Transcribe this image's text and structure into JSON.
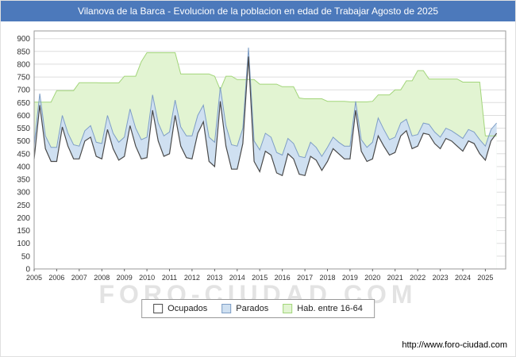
{
  "title": "Vilanova de la Barca - Evolucion de la poblacion en edad de Trabajar Agosto de 2025",
  "watermark": "FORO-CIUDAD.COM",
  "footer": {
    "url": "http://www.foro-ciudad.com"
  },
  "legend": [
    {
      "label": "Ocupados",
      "fill": "#ffffff",
      "stroke": "#4a4a4a"
    },
    {
      "label": "Parados",
      "fill": "#cfe0f1",
      "stroke": "#7e9ec6"
    },
    {
      "label": "Hab. entre 16-64",
      "fill": "#e2f4d2",
      "stroke": "#a2d57a"
    }
  ],
  "colors": {
    "titlebar_bg": "#4c79bb",
    "hab_fill": "#e2f4d2",
    "hab_stroke": "#a2d57a",
    "parados_fill": "#cfe0f1",
    "parados_stroke": "#7e9ec6",
    "ocupados_fill": "#ffffff",
    "ocupados_stroke": "#4a4a4a",
    "grid": "#dddddd",
    "plot_border": "#999999",
    "tick_text": "#333333"
  },
  "chart_data": {
    "type": "area",
    "title": "Vilanova de la Barca - Evolucion de la poblacion en edad de Trabajar Agosto de 2025",
    "xlabel": "",
    "ylabel": "",
    "legend_position": "bottom",
    "grid": true,
    "stacking_note": "Parados is drawn stacked on top of Ocupados; Hab. entre 16-64 is the total working-age population band behind both.",
    "xlim": [
      2005,
      2025.9
    ],
    "ylim": [
      0,
      930
    ],
    "y_tick_max": 900,
    "y_tick_step": 50,
    "x_tick_labels": [
      "2005",
      "2006",
      "2007",
      "2008",
      "2009",
      "2010",
      "2011",
      "2012",
      "2013",
      "2014",
      "2015",
      "2016",
      "2017",
      "2018",
      "2019",
      "2020",
      "2021",
      "2022",
      "2023",
      "2024",
      "2025"
    ],
    "x": [
      2005,
      2005.25,
      2005.5,
      2005.75,
      2006,
      2006.25,
      2006.5,
      2006.75,
      2007,
      2007.25,
      2007.5,
      2007.75,
      2008,
      2008.25,
      2008.5,
      2008.75,
      2009,
      2009.25,
      2009.5,
      2009.75,
      2010,
      2010.25,
      2010.5,
      2010.75,
      2011,
      2011.25,
      2011.5,
      2011.75,
      2012,
      2012.25,
      2012.5,
      2012.75,
      2013,
      2013.25,
      2013.5,
      2013.75,
      2014,
      2014.25,
      2014.5,
      2014.75,
      2015,
      2015.25,
      2015.5,
      2015.75,
      2016,
      2016.25,
      2016.5,
      2016.75,
      2017,
      2017.25,
      2017.5,
      2017.75,
      2018,
      2018.25,
      2018.5,
      2018.75,
      2019,
      2019.25,
      2019.5,
      2019.75,
      2020,
      2020.25,
      2020.5,
      2020.75,
      2021,
      2021.25,
      2021.5,
      2021.75,
      2022,
      2022.25,
      2022.5,
      2022.75,
      2023,
      2023.25,
      2023.5,
      2023.75,
      2024,
      2024.25,
      2024.5,
      2024.75,
      2025,
      2025.25,
      2025.5
    ],
    "series": [
      {
        "name": "Ocupados",
        "values": [
          430,
          640,
          470,
          420,
          420,
          555,
          480,
          430,
          430,
          500,
          515,
          440,
          430,
          545,
          470,
          425,
          440,
          560,
          480,
          430,
          435,
          620,
          500,
          440,
          450,
          600,
          480,
          435,
          430,
          530,
          575,
          420,
          400,
          655,
          480,
          390,
          390,
          490,
          830,
          420,
          380,
          460,
          445,
          375,
          365,
          450,
          430,
          370,
          365,
          440,
          425,
          385,
          420,
          470,
          450,
          430,
          430,
          620,
          460,
          420,
          430,
          520,
          480,
          445,
          455,
          520,
          540,
          470,
          480,
          530,
          525,
          490,
          470,
          510,
          500,
          480,
          460,
          500,
          490,
          450,
          425,
          500,
          530
        ]
      },
      {
        "name": "Parados",
        "values": [
          55,
          45,
          50,
          55,
          55,
          45,
          50,
          55,
          50,
          40,
          45,
          55,
          60,
          55,
          60,
          70,
          75,
          65,
          70,
          75,
          80,
          60,
          70,
          80,
          85,
          60,
          75,
          85,
          90,
          70,
          65,
          95,
          95,
          55,
          80,
          95,
          90,
          60,
          35,
          80,
          85,
          70,
          70,
          80,
          80,
          60,
          60,
          70,
          70,
          55,
          50,
          55,
          55,
          45,
          45,
          50,
          50,
          35,
          45,
          55,
          65,
          70,
          65,
          60,
          60,
          50,
          45,
          50,
          45,
          40,
          40,
          45,
          45,
          40,
          40,
          45,
          50,
          45,
          45,
          55,
          55,
          45,
          40
        ]
      },
      {
        "name": "Hab. entre 16-64",
        "values": [
          652,
          652,
          652,
          652,
          697,
          697,
          697,
          697,
          728,
          728,
          728,
          728,
          727,
          727,
          727,
          727,
          753,
          753,
          753,
          810,
          845,
          845,
          845,
          845,
          845,
          845,
          762,
          762,
          762,
          762,
          762,
          762,
          753,
          700,
          753,
          753,
          740,
          740,
          740,
          740,
          722,
          722,
          722,
          722,
          712,
          712,
          712,
          668,
          665,
          665,
          665,
          665,
          655,
          655,
          655,
          655,
          653,
          653,
          653,
          653,
          655,
          680,
          680,
          680,
          700,
          700,
          735,
          735,
          775,
          775,
          742,
          742,
          742,
          742,
          742,
          742,
          730,
          730,
          730,
          730,
          520,
          520,
          520
        ]
      }
    ]
  }
}
